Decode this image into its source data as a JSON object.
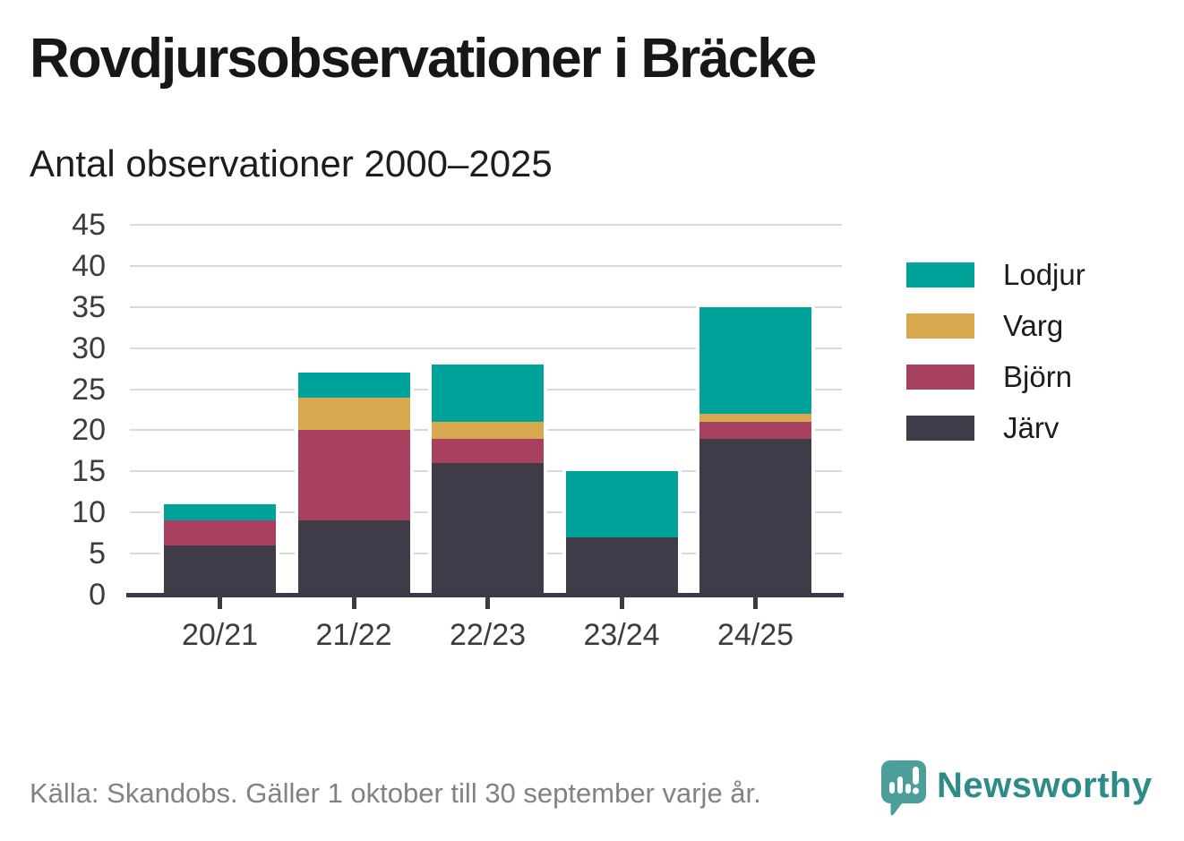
{
  "title": "Rovdjursobservationer i Bräcke",
  "subtitle": "Antal observationer 2000–2025",
  "footer": {
    "source": "Källa: Skandobs. Gäller 1 oktober till 30 september varje år.",
    "brand": "Newsworthy"
  },
  "colors": {
    "lodjur": "#00a399",
    "varg": "#d8a84f",
    "bjorn": "#a8405f",
    "jarv": "#3f3b49",
    "axis": "#3d3947",
    "grid": "#d9d9d9",
    "tick_text": "#3c3c3c",
    "source_text": "#828282",
    "brand_teal_text": "#2e8b87",
    "brand_teal_icon": "#4c9e9a"
  },
  "chart_data": {
    "type": "bar",
    "stacked": true,
    "title": "Rovdjursobservationer i Bräcke",
    "subtitle": "Antal observationer 2000–2025",
    "categories": [
      "20/21",
      "21/22",
      "22/23",
      "23/24",
      "24/25"
    ],
    "series": [
      {
        "name": "Lodjur",
        "color": "#00a399",
        "values": [
          2,
          3,
          7,
          8,
          13
        ]
      },
      {
        "name": "Varg",
        "color": "#d8a84f",
        "values": [
          0,
          4,
          2,
          0,
          1
        ]
      },
      {
        "name": "Björn",
        "color": "#a8405f",
        "values": [
          3,
          11,
          3,
          0,
          2
        ]
      },
      {
        "name": "Järv",
        "color": "#3f3b49",
        "values": [
          6,
          9,
          16,
          7,
          19
        ]
      }
    ],
    "totals": [
      11,
      27,
      28,
      15,
      35
    ],
    "xlabel": "",
    "ylabel": "",
    "ylim": [
      0,
      45
    ],
    "yticks": [
      0,
      5,
      10,
      15,
      20,
      25,
      30,
      35,
      40,
      45
    ],
    "grid": "horizontal",
    "legend_position": "right",
    "legend_order_top_to_bottom": [
      "Lodjur",
      "Varg",
      "Björn",
      "Järv"
    ],
    "stack_order_bottom_to_top": [
      "Järv",
      "Björn",
      "Varg",
      "Lodjur"
    ]
  }
}
